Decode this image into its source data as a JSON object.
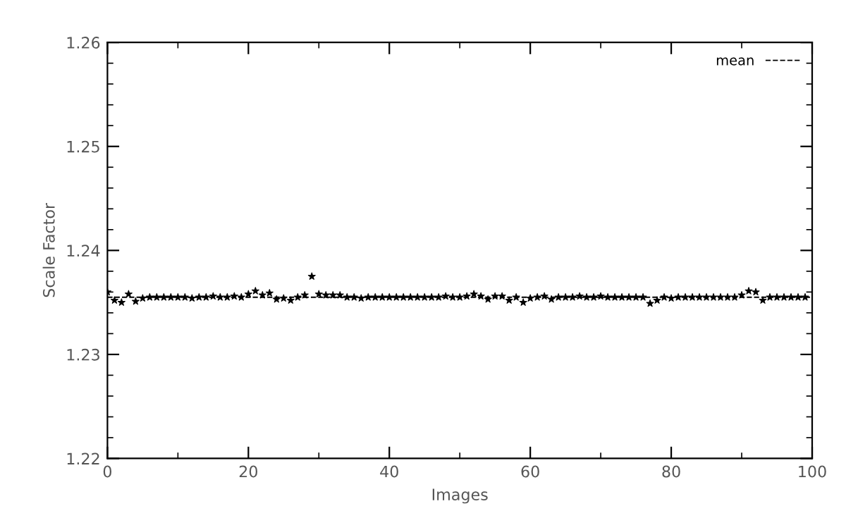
{
  "chart_data": {
    "type": "scatter",
    "xlabel": "Images",
    "ylabel": "Scale Factor",
    "xlim": [
      0,
      100
    ],
    "ylim": [
      1.22,
      1.26
    ],
    "xticks": [
      0,
      20,
      40,
      60,
      80,
      100
    ],
    "yticks": [
      1.22,
      1.23,
      1.24,
      1.25,
      1.26
    ],
    "marker": "star",
    "grid": false,
    "legend": "top right",
    "ref_lines": [
      {
        "axis": "y",
        "value": 1.2355,
        "label": "mean",
        "line_style": "dashed",
        "color": "#000000"
      }
    ],
    "series": [
      {
        "color": "#000000",
        "x": [
          0,
          1,
          2,
          3,
          4,
          5,
          6,
          7,
          8,
          9,
          10,
          11,
          12,
          13,
          14,
          15,
          16,
          17,
          18,
          19,
          20,
          21,
          22,
          23,
          24,
          25,
          26,
          27,
          28,
          29,
          30,
          31,
          32,
          33,
          34,
          35,
          36,
          37,
          38,
          39,
          40,
          41,
          42,
          43,
          44,
          45,
          46,
          47,
          48,
          49,
          50,
          51,
          52,
          53,
          54,
          55,
          56,
          57,
          58,
          59,
          60,
          61,
          62,
          63,
          64,
          65,
          66,
          67,
          68,
          69,
          70,
          71,
          72,
          73,
          74,
          75,
          76,
          77,
          78,
          79,
          80,
          81,
          82,
          83,
          84,
          85,
          86,
          87,
          88,
          89,
          90,
          91,
          92,
          93,
          94,
          95,
          96,
          97,
          98,
          99
        ],
        "values": [
          1.236,
          1.2352,
          1.235,
          1.2358,
          1.2351,
          1.2354,
          1.2355,
          1.2355,
          1.2355,
          1.2355,
          1.2355,
          1.2355,
          1.2354,
          1.2355,
          1.2355,
          1.2356,
          1.2355,
          1.2355,
          1.2356,
          1.2355,
          1.2358,
          1.2361,
          1.2357,
          1.2359,
          1.2353,
          1.2354,
          1.2352,
          1.2355,
          1.2357,
          1.2375,
          1.2358,
          1.2357,
          1.2357,
          1.2357,
          1.2355,
          1.2355,
          1.2354,
          1.2355,
          1.2355,
          1.2355,
          1.2355,
          1.2355,
          1.2355,
          1.2355,
          1.2355,
          1.2355,
          1.2355,
          1.2355,
          1.2356,
          1.2355,
          1.2355,
          1.2356,
          1.2358,
          1.2356,
          1.2353,
          1.2356,
          1.2356,
          1.2352,
          1.2355,
          1.235,
          1.2354,
          1.2355,
          1.2356,
          1.2353,
          1.2355,
          1.2355,
          1.2355,
          1.2356,
          1.2355,
          1.2355,
          1.2356,
          1.2355,
          1.2355,
          1.2355,
          1.2355,
          1.2355,
          1.2355,
          1.2349,
          1.2352,
          1.2355,
          1.2354,
          1.2355,
          1.2355,
          1.2355,
          1.2355,
          1.2355,
          1.2355,
          1.2355,
          1.2355,
          1.2355,
          1.2357,
          1.2361,
          1.236,
          1.2352,
          1.2355,
          1.2355,
          1.2355,
          1.2355,
          1.2355,
          1.2355
        ]
      }
    ]
  }
}
